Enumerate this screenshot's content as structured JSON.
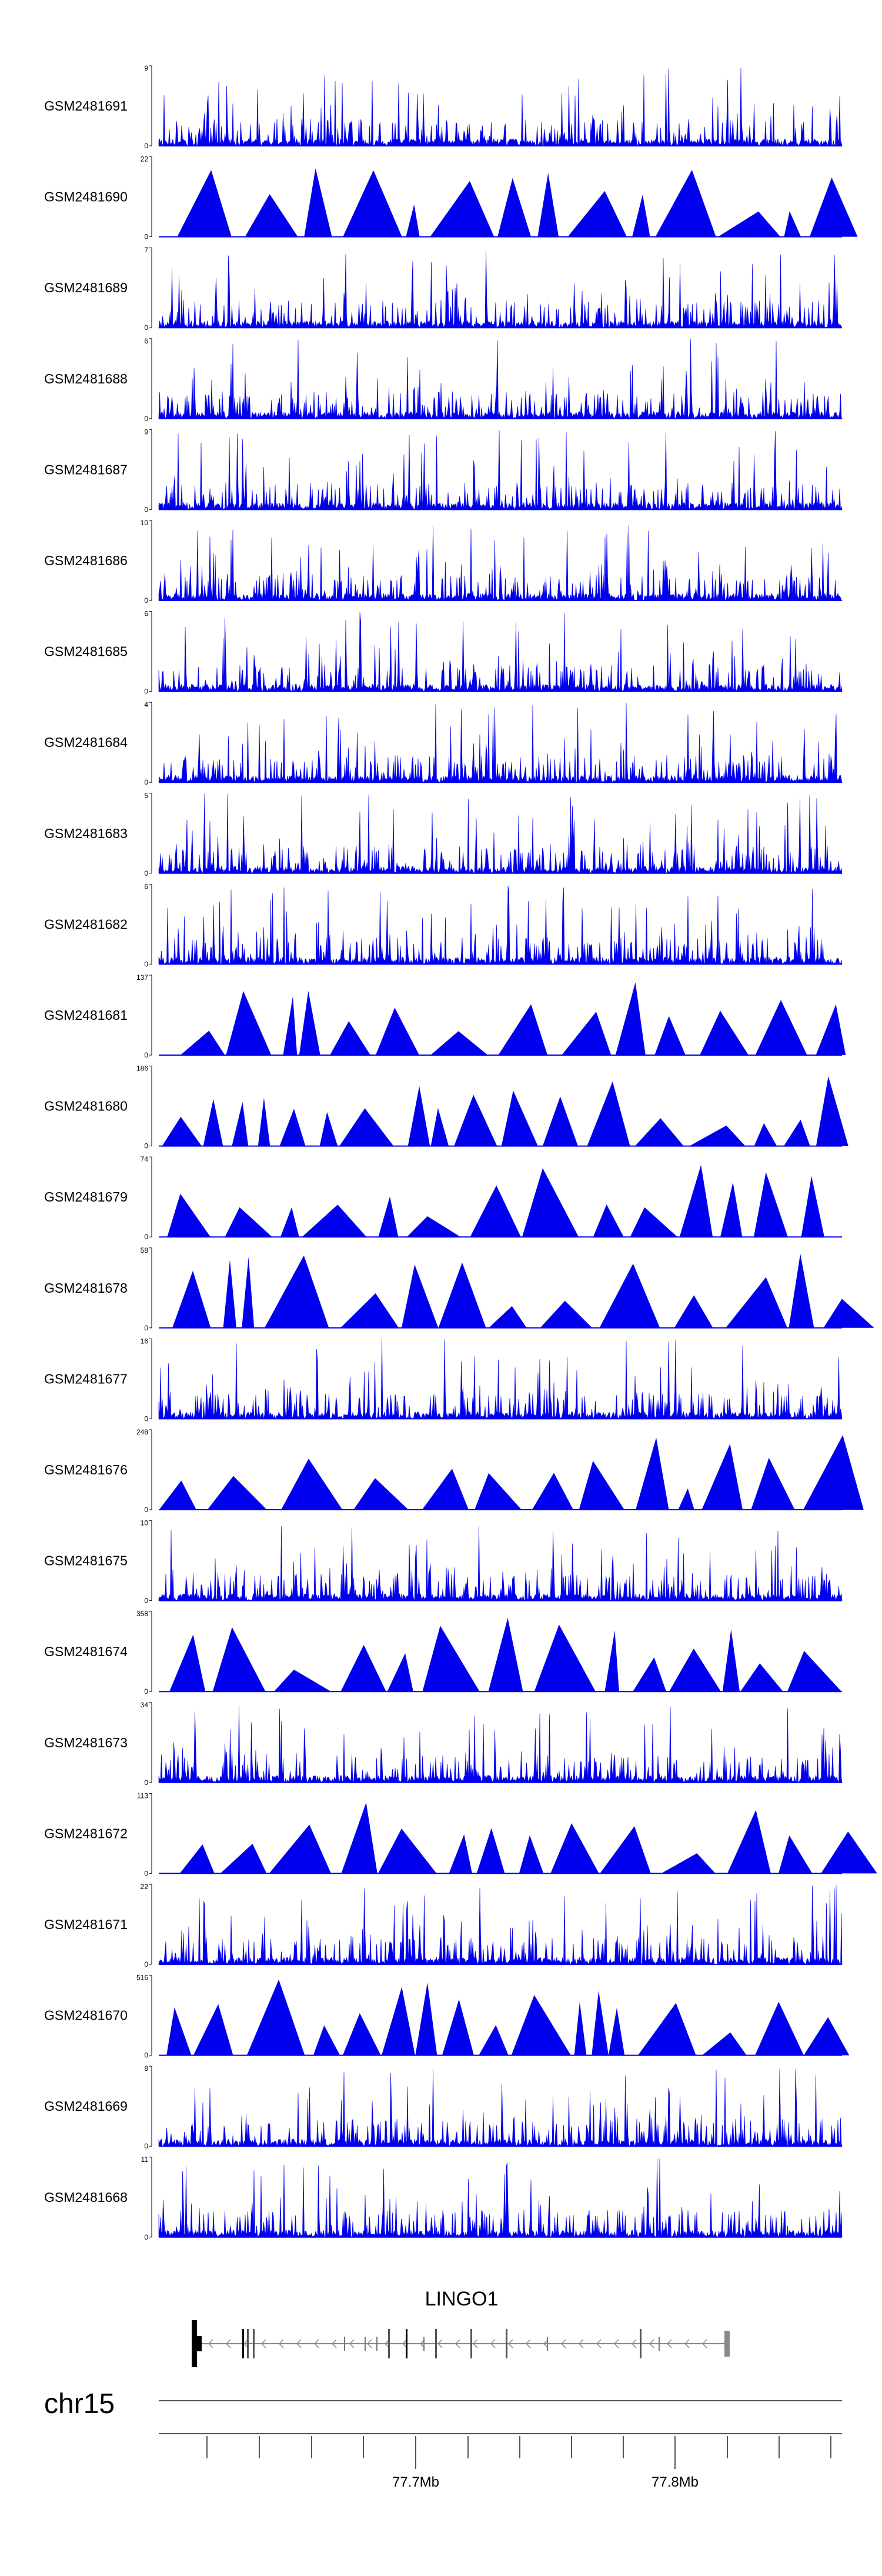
{
  "chart_data": {
    "type": "area",
    "title": "",
    "colors": {
      "signal": "#0000ee",
      "axis": "#000000",
      "gene": "#888888",
      "exon": "#000000"
    },
    "tracks": [
      {
        "name": "GSM2481691",
        "ymax": 9,
        "style": "dense",
        "seed": 1
      },
      {
        "name": "GSM2481690",
        "ymax": 22,
        "style": "sparse",
        "seed": 2
      },
      {
        "name": "GSM2481689",
        "ymax": 7,
        "style": "dense",
        "seed": 3
      },
      {
        "name": "GSM2481688",
        "ymax": 6,
        "style": "dense",
        "seed": 4
      },
      {
        "name": "GSM2481687",
        "ymax": 9,
        "style": "dense",
        "seed": 5
      },
      {
        "name": "GSM2481686",
        "ymax": 10,
        "style": "dense",
        "seed": 6
      },
      {
        "name": "GSM2481685",
        "ymax": 6,
        "style": "dense",
        "seed": 7
      },
      {
        "name": "GSM2481684",
        "ymax": 4,
        "style": "dense",
        "seed": 8
      },
      {
        "name": "GSM2481683",
        "ymax": 5,
        "style": "dense",
        "seed": 9
      },
      {
        "name": "GSM2481682",
        "ymax": 6,
        "style": "dense",
        "seed": 10
      },
      {
        "name": "GSM2481681",
        "ymax": 137,
        "style": "sparse",
        "seed": 11
      },
      {
        "name": "GSM2481680",
        "ymax": 186,
        "style": "sparse",
        "seed": 12
      },
      {
        "name": "GSM2481679",
        "ymax": 74,
        "style": "sparse",
        "seed": 13
      },
      {
        "name": "GSM2481678",
        "ymax": 58,
        "style": "sparse",
        "seed": 14
      },
      {
        "name": "GSM2481677",
        "ymax": 16,
        "style": "dense",
        "seed": 15
      },
      {
        "name": "GSM2481676",
        "ymax": 248,
        "style": "sparse",
        "seed": 16
      },
      {
        "name": "GSM2481675",
        "ymax": 10,
        "style": "dense",
        "seed": 17
      },
      {
        "name": "GSM2481674",
        "ymax": 358,
        "style": "sparse",
        "seed": 18
      },
      {
        "name": "GSM2481673",
        "ymax": 34,
        "style": "dense",
        "seed": 19
      },
      {
        "name": "GSM2481672",
        "ymax": 113,
        "style": "sparse",
        "seed": 20
      },
      {
        "name": "GSM2481671",
        "ymax": 22,
        "style": "dense",
        "seed": 21
      },
      {
        "name": "GSM2481670",
        "ymax": 516,
        "style": "sparse",
        "seed": 22
      },
      {
        "name": "GSM2481669",
        "ymax": 8,
        "style": "dense",
        "seed": 23
      },
      {
        "name": "GSM2481668",
        "ymax": 11,
        "style": "dense",
        "seed": 24
      }
    ],
    "ymin_label": "0",
    "gene": {
      "name": "LINGO1",
      "strand": "-"
    },
    "chromosome": "chr15",
    "x_ticks": [
      "77.7Mb",
      "77.8Mb"
    ]
  }
}
